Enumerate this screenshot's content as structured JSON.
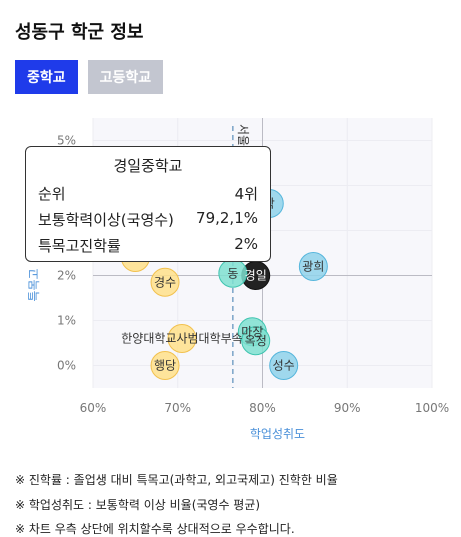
{
  "page": {
    "title": "성동구 학군 정보"
  },
  "tabs": [
    {
      "label": "중학교",
      "active": true
    },
    {
      "label": "고등학교",
      "active": false
    }
  ],
  "colors": {
    "accent": "#1f3bea",
    "inactive": "#c3c6d0",
    "blue_point": "#8fd2ea",
    "teal_point": "#7fe0d0",
    "yellow_point": "#ffe08a",
    "black_point": "#222222",
    "axis_label": "#4a90d9"
  },
  "chart_data": {
    "type": "scatter",
    "xlabel": "학업성취도",
    "ylabel": "특목고",
    "x_ticks": [
      "60%",
      "70%",
      "80%",
      "90%",
      "100%"
    ],
    "y_ticks": [
      "0%",
      "1%",
      "2%",
      "3%",
      "4%",
      "5%"
    ],
    "xlim": [
      60,
      100
    ],
    "ylim": [
      -0.5,
      5.5
    ],
    "reference_lines": {
      "x_mean": 76.5,
      "y_center": 2,
      "x_center": 80
    },
    "points": [
      {
        "label": "경일",
        "x": 79.2,
        "y": 2,
        "color": "black"
      },
      {
        "label": "광희",
        "x": 86,
        "y": 2.2,
        "color": "blue"
      },
      {
        "label": "성수",
        "x": 82.5,
        "y": 0,
        "color": "blue"
      },
      {
        "label": "마장",
        "x": 78.8,
        "y": 0.75,
        "color": "teal"
      },
      {
        "label": "옥정",
        "x": 79.2,
        "y": 0.55,
        "color": "teal"
      },
      {
        "label": "동",
        "x": 76.5,
        "y": 2.05,
        "color": "teal"
      },
      {
        "label": "경수",
        "x": 68.5,
        "y": 1.85,
        "color": "yellow"
      },
      {
        "label": "한양대학교사범대학부속",
        "x": 70.5,
        "y": 0.6,
        "color": "yellow"
      },
      {
        "label": "행당",
        "x": 68.5,
        "y": 0,
        "color": "yellow"
      },
      {
        "label": "학",
        "x": 80.8,
        "y": 3.6,
        "color": "blue"
      },
      {
        "label": "",
        "x": 65,
        "y": 2.4,
        "color": "yellow"
      }
    ],
    "partial_label": "서울"
  },
  "tooltip": {
    "title": "경일중학교",
    "rows": [
      {
        "label": "순위",
        "value": "4위"
      },
      {
        "label": "보통학력이상(국영수)",
        "value": "79,2,1%"
      },
      {
        "label": "특목고진학률",
        "value": "2%"
      }
    ]
  },
  "notes": [
    "※ 진학률 : 졸업생 대비 특목고(과학고, 외고국제고) 진학한 비율",
    "※ 학업성취도 : 보통학력 이상 비율(국영수 평균)",
    "※ 차트 우측 상단에 위치할수록 상대적으로 우수합니다."
  ]
}
